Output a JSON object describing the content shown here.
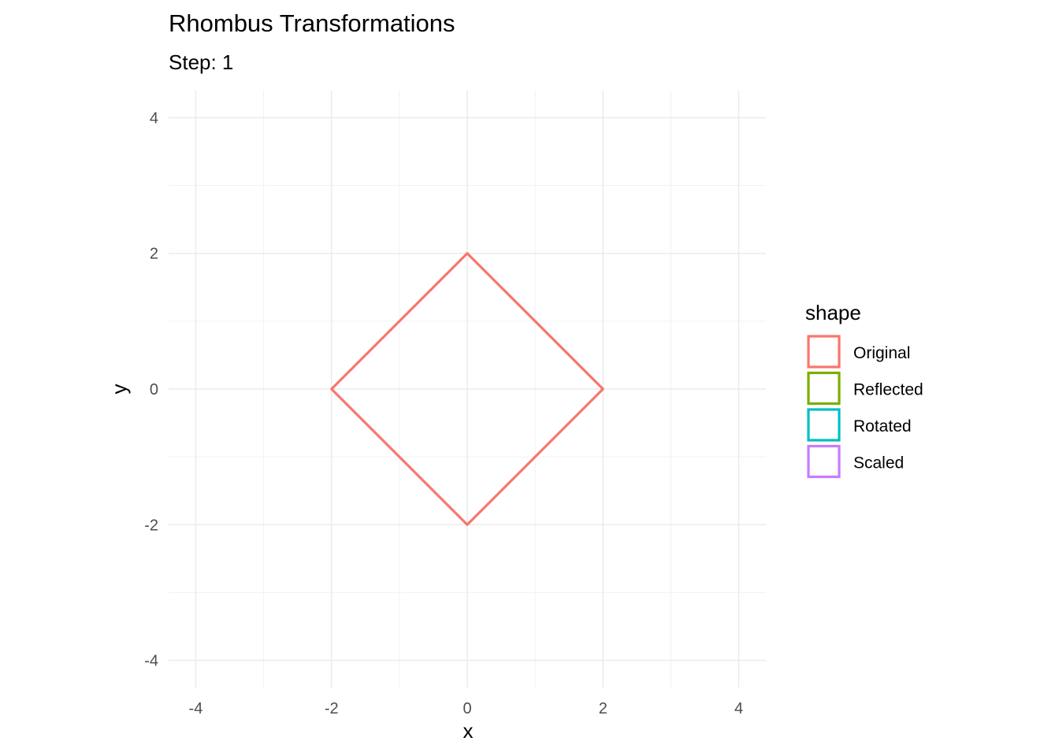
{
  "chart_data": {
    "type": "line",
    "title": "Rhombus Transformations",
    "subtitle": "Step: 1",
    "xlabel": "x",
    "ylabel": "y",
    "xlim": [
      -4.4,
      4.4
    ],
    "ylim": [
      -4.4,
      4.4
    ],
    "x_ticks": [
      -4,
      -2,
      0,
      2,
      4
    ],
    "y_ticks": [
      -4,
      -2,
      0,
      2,
      4
    ],
    "x_tick_labels": [
      "-4",
      "-2",
      "0",
      "2",
      "4"
    ],
    "y_tick_labels": [
      "-4",
      "-2",
      "0",
      "2",
      "4"
    ],
    "grid": true,
    "legend": {
      "title": "shape",
      "position": "right",
      "entries": [
        {
          "name": "Original",
          "color": "#F8766D"
        },
        {
          "name": "Reflected",
          "color": "#7CAE00"
        },
        {
          "name": "Rotated",
          "color": "#00BFC4"
        },
        {
          "name": "Scaled",
          "color": "#C77CFF"
        }
      ]
    },
    "series": [
      {
        "name": "Original",
        "color": "#F8766D",
        "closed": true,
        "points": [
          [
            0,
            2
          ],
          [
            2,
            0
          ],
          [
            0,
            -2
          ],
          [
            -2,
            0
          ]
        ]
      }
    ]
  }
}
